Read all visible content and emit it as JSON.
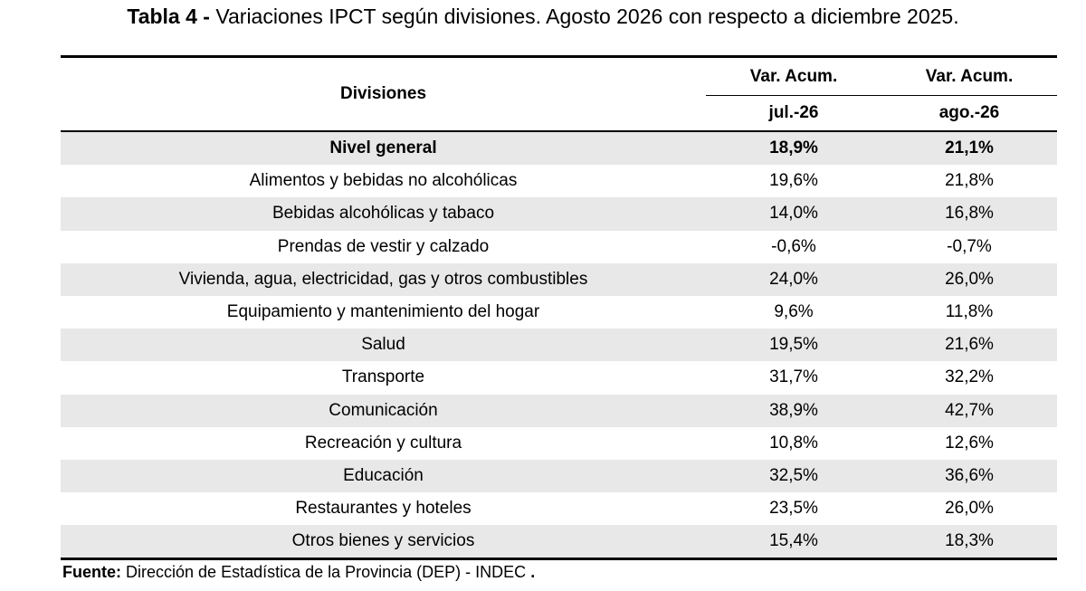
{
  "title": {
    "label": "Tabla 4 -",
    "text": "Variaciones IPCT según divisiones. Agosto 2026 con respecto a diciembre 2025."
  },
  "table": {
    "header": {
      "divisiones": "Divisiones",
      "col1_top": "Var. Acum.",
      "col2_top": "Var. Acum.",
      "col1_period": "jul.-26",
      "col2_period": "ago.-26"
    },
    "rows": [
      {
        "division": "Nivel general",
        "jul": "18,9%",
        "ago": "21,1%"
      },
      {
        "division": "Alimentos y bebidas no alcohólicas",
        "jul": "19,6%",
        "ago": "21,8%"
      },
      {
        "division": "Bebidas alcohólicas y tabaco",
        "jul": "14,0%",
        "ago": "16,8%"
      },
      {
        "division": "Prendas de vestir y calzado",
        "jul": "-0,6%",
        "ago": "-0,7%"
      },
      {
        "division": "Vivienda, agua, electricidad, gas y otros combustibles",
        "jul": "24,0%",
        "ago": "26,0%"
      },
      {
        "division": "Equipamiento y mantenimiento del hogar",
        "jul": "9,6%",
        "ago": "11,8%"
      },
      {
        "division": "Salud",
        "jul": "19,5%",
        "ago": "21,6%"
      },
      {
        "division": "Transporte",
        "jul": "31,7%",
        "ago": "32,2%"
      },
      {
        "division": "Comunicación",
        "jul": "38,9%",
        "ago": "42,7%"
      },
      {
        "division": "Recreación y cultura",
        "jul": "10,8%",
        "ago": "12,6%"
      },
      {
        "division": "Educación",
        "jul": "32,5%",
        "ago": "36,6%"
      },
      {
        "division": "Restaurantes y hoteles",
        "jul": "23,5%",
        "ago": "26,0%"
      },
      {
        "division": "Otros bienes y servicios",
        "jul": "15,4%",
        "ago": "18,3%"
      }
    ]
  },
  "footer": {
    "label": "Fuente:",
    "text": "Dirección de Estadística de la Provincia (DEP) - INDEC",
    "end": "."
  }
}
